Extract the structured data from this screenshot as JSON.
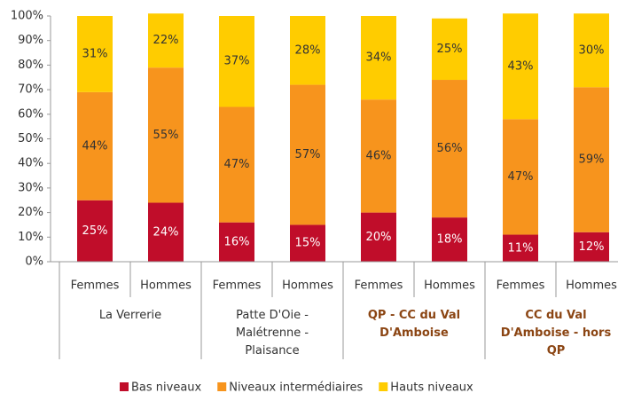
{
  "chart_data": {
    "type": "stacked_bar",
    "categories": [
      "Femmes",
      "Hommes",
      "Femmes",
      "Hommes",
      "Femmes",
      "Hommes",
      "Femmes",
      "Hommes"
    ],
    "groups": [
      {
        "name": "La Verrerie",
        "bold": false
      },
      {
        "name": "Patte D'Oie - Malétrenne - Plaisance",
        "bold": false
      },
      {
        "name": "QP - CC du Val D'Amboise",
        "bold": true
      },
      {
        "name": "CC du Val D'Amboise - hors QP",
        "bold": true
      }
    ],
    "group_highlight_color": "#8b4513",
    "series": [
      {
        "name": "Bas niveaux",
        "color": "#c00d2a",
        "label_color": "#ffffff",
        "values": [
          25,
          24,
          16,
          15,
          20,
          18,
          11,
          12
        ],
        "value_labels": [
          "25%",
          "24%",
          "16%",
          "15%",
          "20%",
          "18%",
          "11%",
          "12%"
        ]
      },
      {
        "name": "Niveaux intermédiaires",
        "color": "#f7941d",
        "label_color": "#333333",
        "values": [
          44,
          55,
          47,
          57,
          46,
          56,
          47,
          59
        ],
        "value_labels": [
          "44%",
          "55%",
          "47%",
          "57%",
          "46%",
          "56%",
          "47%",
          "59%"
        ]
      },
      {
        "name": "Hauts niveaux",
        "color": "#ffcc00",
        "label_color": "#333333",
        "values": [
          31,
          22,
          37,
          28,
          34,
          25,
          43,
          30
        ],
        "value_labels": [
          "31%",
          "22%",
          "37%",
          "28%",
          "34%",
          "25%",
          "43%",
          "30%"
        ]
      }
    ],
    "ylim": [
      0,
      100
    ],
    "yticks": [
      {
        "value": 0,
        "label": "0%"
      },
      {
        "value": 10,
        "label": "10%"
      },
      {
        "value": 20,
        "label": "20%"
      },
      {
        "value": 30,
        "label": "30%"
      },
      {
        "value": 40,
        "label": "40%"
      },
      {
        "value": 50,
        "label": "50%"
      },
      {
        "value": 60,
        "label": "60%"
      },
      {
        "value": 70,
        "label": "70%"
      },
      {
        "value": 80,
        "label": "80%"
      },
      {
        "value": 90,
        "label": "90%"
      },
      {
        "value": 100,
        "label": "100%"
      }
    ],
    "grid": false,
    "legend": "bottom"
  }
}
